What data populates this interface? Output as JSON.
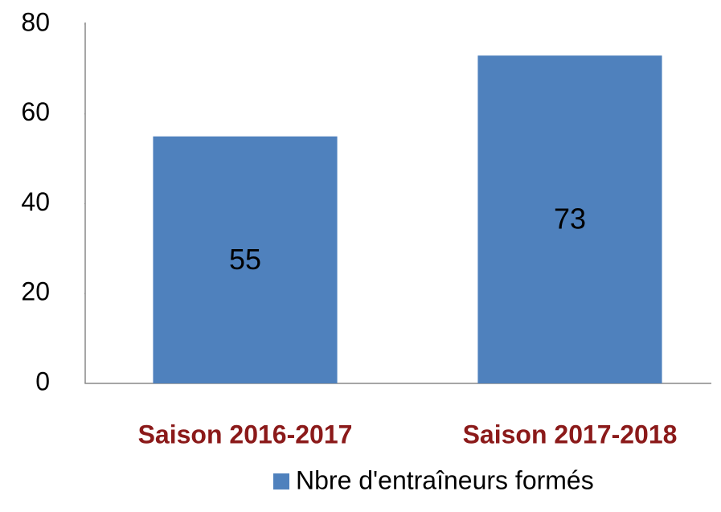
{
  "chart_data": {
    "type": "bar",
    "categories": [
      "Saison 2016-2017",
      "Saison 2017-2018"
    ],
    "series": [
      {
        "name": "Nbre d'entraîneurs formés",
        "color": "#4f81bd",
        "values": [
          55,
          73
        ]
      }
    ],
    "ylim": [
      0,
      80
    ],
    "yticks": [
      0,
      20,
      40,
      60,
      80
    ],
    "grid": false
  }
}
